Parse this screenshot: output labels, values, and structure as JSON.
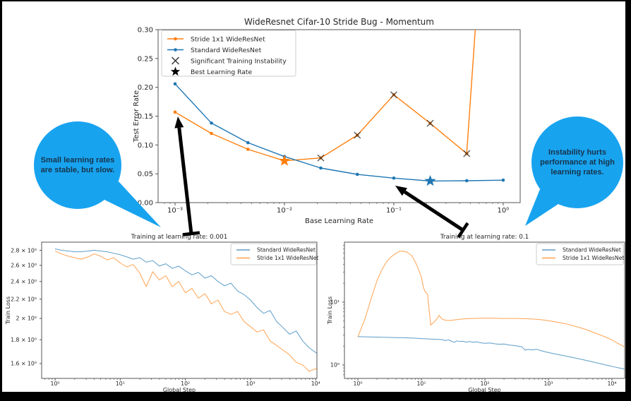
{
  "page": {
    "background": "#000000",
    "canvas_background": "#ffffff"
  },
  "colors": {
    "stride_orange": "#ff7f0e",
    "standard_blue": "#1f77b4",
    "axis_gray": "#555555",
    "marker_x": "#2f2f2f",
    "best_star_black": "#000000",
    "bubble_blue": "#18a3ef",
    "bubble_text": "#16334a"
  },
  "chart_data": [
    {
      "id": "top",
      "type": "line",
      "title": "WideResnet Cifar-10 Stride Bug - Momentum",
      "xlabel": "Base Learning Rate",
      "ylabel": "Test Error Rate",
      "xscale": "log",
      "yscale": "linear",
      "xlim": [
        0.0007,
        1.43
      ],
      "ylim": [
        0,
        0.3
      ],
      "grid": false,
      "legend_position": "upper left",
      "xticks": [
        {
          "v": 0.001,
          "label": "10⁻³"
        },
        {
          "v": 0.01,
          "label": "10⁻²"
        },
        {
          "v": 0.1,
          "label": "10⁻¹"
        },
        {
          "v": 1,
          "label": "10⁰"
        }
      ],
      "yticks": [
        {
          "v": 0,
          "label": "0.00"
        },
        {
          "v": 0.05,
          "label": "0.05"
        },
        {
          "v": 0.1,
          "label": "0.10"
        },
        {
          "v": 0.15,
          "label": "0.15"
        },
        {
          "v": 0.2,
          "label": "0.20"
        },
        {
          "v": 0.25,
          "label": "0.25"
        },
        {
          "v": 0.3,
          "label": "0.30"
        }
      ],
      "legend": [
        {
          "label": "Stride 1x1 WideResNet",
          "glyph": "line-dot",
          "color": "#ff7f0e"
        },
        {
          "label": "Standard WideResNet",
          "glyph": "line-dot",
          "color": "#1f77b4"
        },
        {
          "label": "Significant Training Instability",
          "glyph": "x",
          "color": "#2f2f2f"
        },
        {
          "label": "Best Learning Rate",
          "glyph": "star",
          "color": "#000000"
        }
      ],
      "series": [
        {
          "name": "Stride 1x1 WideResNet",
          "color": "#ff7f0e",
          "marker": "dot",
          "points": [
            [
              0.001,
              0.157
            ],
            [
              0.00215,
              0.12
            ],
            [
              0.00464,
              0.0925
            ],
            [
              0.01,
              0.0725
            ],
            [
              0.0215,
              0.0775
            ],
            [
              0.0464,
              0.117
            ],
            [
              0.1,
              0.187
            ],
            [
              0.215,
              0.1375
            ],
            [
              0.464,
              0.085
            ],
            [
              1.0,
              1.0
            ]
          ],
          "instability_x": [
            0.0215,
            0.0464,
            0.1,
            0.215,
            0.464
          ],
          "best_lr": 0.01
        },
        {
          "name": "Standard WideResNet",
          "color": "#1f77b4",
          "marker": "dot",
          "points": [
            [
              0.001,
              0.206
            ],
            [
              0.00215,
              0.138
            ],
            [
              0.00464,
              0.104
            ],
            [
              0.01,
              0.08
            ],
            [
              0.0215,
              0.06
            ],
            [
              0.0464,
              0.049
            ],
            [
              0.1,
              0.0425
            ],
            [
              0.215,
              0.0375
            ],
            [
              0.464,
              0.038
            ],
            [
              1.0,
              0.039
            ]
          ],
          "instability_x": [],
          "best_lr": 0.215
        }
      ]
    },
    {
      "id": "bl",
      "type": "line",
      "title": "Training at learning rate: 0.001",
      "xlabel": "Global Step",
      "ylabel": "Train Loss",
      "xscale": "log",
      "yscale": "log",
      "xlim": [
        0.622,
        10445
      ],
      "ylim": [
        1.487,
        2.915
      ],
      "grid": false,
      "legend_position": "upper right",
      "xticks": [
        {
          "v": 1,
          "label": "10⁰"
        },
        {
          "v": 10,
          "label": "10¹"
        },
        {
          "v": 100,
          "label": "10²"
        },
        {
          "v": 1000,
          "label": "10³"
        },
        {
          "v": 10000,
          "label": "10⁴"
        }
      ],
      "yticks": [
        {
          "v": 2.8,
          "label": "2.8 × 10⁰"
        },
        {
          "v": 2.6,
          "label": "2.6 × 10⁰"
        },
        {
          "v": 2.4,
          "label": "2.4 × 10⁰"
        },
        {
          "v": 2.2,
          "label": "2.2 × 10⁰"
        },
        {
          "v": 2.0,
          "label": "2 × 10⁰"
        },
        {
          "v": 1.8,
          "label": "1.8 × 10⁰"
        },
        {
          "v": 1.6,
          "label": "1.6 × 10⁰"
        }
      ],
      "legend": [
        {
          "label": "Standard WideResNet",
          "glyph": "line",
          "color": "#1f77b4"
        },
        {
          "label": "Stride 1x1 WideResNet",
          "glyph": "line",
          "color": "#ff7f0e"
        }
      ],
      "series": [
        {
          "name": "Standard WideResNet",
          "color": "#1f77b4",
          "marker": "none",
          "points": [
            [
              1,
              2.82
            ],
            [
              1.25,
              2.8
            ],
            [
              1.6,
              2.79
            ],
            [
              2,
              2.78
            ],
            [
              2.5,
              2.78
            ],
            [
              3.2,
              2.79
            ],
            [
              4,
              2.8
            ],
            [
              5,
              2.79
            ],
            [
              6.3,
              2.78
            ],
            [
              7.9,
              2.76
            ],
            [
              10,
              2.74
            ],
            [
              12.6,
              2.71
            ],
            [
              15.8,
              2.68
            ],
            [
              20,
              2.7
            ],
            [
              25,
              2.64
            ],
            [
              31.6,
              2.66
            ],
            [
              39.8,
              2.59
            ],
            [
              50,
              2.62
            ],
            [
              63,
              2.56
            ],
            [
              79,
              2.59
            ],
            [
              100,
              2.53
            ],
            [
              126,
              2.48
            ],
            [
              158,
              2.51
            ],
            [
              200,
              2.44
            ],
            [
              251,
              2.47
            ],
            [
              316,
              2.4
            ],
            [
              398,
              2.35
            ],
            [
              501,
              2.38
            ],
            [
              631,
              2.29
            ],
            [
              794,
              2.25
            ],
            [
              1000,
              2.19
            ],
            [
              1259,
              2.11
            ],
            [
              1585,
              2.05
            ],
            [
              1995,
              2.08
            ],
            [
              2512,
              1.97
            ],
            [
              3162,
              1.91
            ],
            [
              3981,
              1.85
            ],
            [
              5012,
              1.88
            ],
            [
              6310,
              1.79
            ],
            [
              7943,
              1.73
            ],
            [
              10000,
              1.69
            ],
            [
              11500,
              1.67
            ]
          ]
        },
        {
          "name": "Stride 1x1 WideResNet",
          "color": "#ff7f0e",
          "marker": "none",
          "points": [
            [
              1,
              2.79
            ],
            [
              1.25,
              2.75
            ],
            [
              1.6,
              2.72
            ],
            [
              2,
              2.7
            ],
            [
              2.5,
              2.68
            ],
            [
              3.2,
              2.71
            ],
            [
              4,
              2.75
            ],
            [
              5,
              2.72
            ],
            [
              6.3,
              2.67
            ],
            [
              7.9,
              2.7
            ],
            [
              10,
              2.63
            ],
            [
              12.6,
              2.58
            ],
            [
              15.8,
              2.61
            ],
            [
              20,
              2.5
            ],
            [
              25,
              2.34
            ],
            [
              31.6,
              2.52
            ],
            [
              39.8,
              2.42
            ],
            [
              50,
              2.47
            ],
            [
              63,
              2.34
            ],
            [
              79,
              2.4
            ],
            [
              100,
              2.27
            ],
            [
              126,
              2.32
            ],
            [
              158,
              2.21
            ],
            [
              200,
              2.26
            ],
            [
              251,
              2.15
            ],
            [
              316,
              2.19
            ],
            [
              398,
              2.07
            ],
            [
              501,
              2.04
            ],
            [
              631,
              2.07
            ],
            [
              794,
              1.97
            ],
            [
              1000,
              1.92
            ],
            [
              1259,
              1.87
            ],
            [
              1585,
              1.89
            ],
            [
              1995,
              1.79
            ],
            [
              2512,
              1.75
            ],
            [
              3162,
              1.71
            ],
            [
              3981,
              1.67
            ],
            [
              5012,
              1.61
            ],
            [
              6310,
              1.59
            ],
            [
              7943,
              1.54
            ],
            [
              10000,
              1.56
            ],
            [
              11500,
              1.53
            ]
          ]
        }
      ]
    },
    {
      "id": "br",
      "type": "line",
      "title": "Training at learning rate: 0.1",
      "xlabel": "Global Step",
      "ylabel": "Train Loss",
      "xscale": "log",
      "yscale": "log",
      "xlim": [
        0.615,
        15849
      ],
      "ylim": [
        0.612,
        90
      ],
      "grid": false,
      "legend_position": "upper right",
      "xticks": [
        {
          "v": 1,
          "label": "10⁰"
        },
        {
          "v": 10,
          "label": "10¹"
        },
        {
          "v": 100,
          "label": "10²"
        },
        {
          "v": 1000,
          "label": "10³"
        },
        {
          "v": 10000,
          "label": "10⁴"
        }
      ],
      "yticks": [
        {
          "v": 1,
          "label": "10⁰"
        },
        {
          "v": 10,
          "label": "10¹"
        }
      ],
      "legend": [
        {
          "label": "Standard WideResNet",
          "glyph": "line",
          "color": "#1f77b4"
        },
        {
          "label": "Stride 1x1 WideResNet",
          "glyph": "line",
          "color": "#ff7f0e"
        }
      ],
      "series": [
        {
          "name": "Standard WideResNet",
          "color": "#1f77b4",
          "marker": "none",
          "points": [
            [
              1,
              2.82
            ],
            [
              1.5,
              2.8
            ],
            [
              2,
              2.78
            ],
            [
              3,
              2.75
            ],
            [
              4,
              2.73
            ],
            [
              5,
              2.72
            ],
            [
              6,
              2.7
            ],
            [
              8,
              2.67
            ],
            [
              10,
              2.63
            ],
            [
              13,
              2.6
            ],
            [
              16,
              2.57
            ],
            [
              20,
              2.55
            ],
            [
              24,
              2.45
            ],
            [
              27,
              2.52
            ],
            [
              30,
              2.38
            ],
            [
              33,
              2.3
            ],
            [
              36,
              2.42
            ],
            [
              40,
              2.36
            ],
            [
              45,
              2.4
            ],
            [
              50,
              2.31
            ],
            [
              57,
              2.36
            ],
            [
              65,
              2.3
            ],
            [
              75,
              2.33
            ],
            [
              85,
              2.26
            ],
            [
              100,
              2.22
            ],
            [
              120,
              2.25
            ],
            [
              140,
              2.18
            ],
            [
              170,
              2.14
            ],
            [
              200,
              2.16
            ],
            [
              240,
              2.08
            ],
            [
              280,
              2.05
            ],
            [
              330,
              2.0
            ],
            [
              380,
              1.95
            ],
            [
              430,
              1.72
            ],
            [
              480,
              1.77
            ],
            [
              550,
              1.74
            ],
            [
              650,
              1.78
            ],
            [
              750,
              1.7
            ],
            [
              900,
              1.62
            ],
            [
              1100,
              1.55
            ],
            [
              1400,
              1.47
            ],
            [
              1800,
              1.4
            ],
            [
              2300,
              1.33
            ],
            [
              3000,
              1.26
            ],
            [
              4000,
              1.18
            ],
            [
              5200,
              1.11
            ],
            [
              6800,
              1.04
            ],
            [
              8800,
              0.98
            ],
            [
              11000,
              0.93
            ],
            [
              13500,
              0.89
            ],
            [
              15849,
              0.86
            ]
          ]
        },
        {
          "name": "Stride 1x1 WideResNet",
          "color": "#ff7f0e",
          "marker": "none",
          "points": [
            [
              1,
              2.8
            ],
            [
              1.3,
              5.5
            ],
            [
              1.6,
              11
            ],
            [
              2,
              22
            ],
            [
              2.4,
              33
            ],
            [
              2.8,
              43
            ],
            [
              3.3,
              52
            ],
            [
              3.9,
              59
            ],
            [
              4.5,
              64
            ],
            [
              5.2,
              65
            ],
            [
              6,
              62
            ],
            [
              7,
              55
            ],
            [
              8,
              44
            ],
            [
              9,
              33
            ],
            [
              10,
              25
            ],
            [
              10.8,
              17
            ],
            [
              11.5,
              14.5
            ],
            [
              12.5,
              13.5
            ],
            [
              13,
              9
            ],
            [
              14,
              4.3
            ],
            [
              16,
              4.9
            ],
            [
              18,
              5.6
            ],
            [
              19,
              6.2
            ],
            [
              21,
              5.4
            ],
            [
              24,
              5.15
            ],
            [
              28,
              5.1
            ],
            [
              35,
              5.25
            ],
            [
              45,
              5.4
            ],
            [
              60,
              5.5
            ],
            [
              90,
              5.55
            ],
            [
              130,
              5.55
            ],
            [
              200,
              5.5
            ],
            [
              300,
              5.5
            ],
            [
              450,
              5.45
            ],
            [
              650,
              5.35
            ],
            [
              900,
              5.15
            ],
            [
              1300,
              4.85
            ],
            [
              1900,
              4.5
            ],
            [
              2700,
              4.1
            ],
            [
              3800,
              3.7
            ],
            [
              5300,
              3.25
            ],
            [
              7500,
              2.85
            ],
            [
              10000,
              2.5
            ],
            [
              13000,
              2.15
            ],
            [
              15849,
              1.95
            ]
          ]
        }
      ]
    }
  ],
  "annotations": {
    "arrows": [
      {
        "tail": [
          271,
          331
        ],
        "head": [
          252,
          165
        ]
      },
      {
        "tail": [
          656,
          326
        ],
        "head": [
          560,
          263
        ]
      }
    ],
    "bubbles": {
      "left": {
        "lines": [
          "Small learning rates",
          "are stable, but slow."
        ]
      },
      "right": {
        "lines": [
          "Instability hurts",
          "performance at high",
          "learning rates."
        ]
      }
    }
  }
}
